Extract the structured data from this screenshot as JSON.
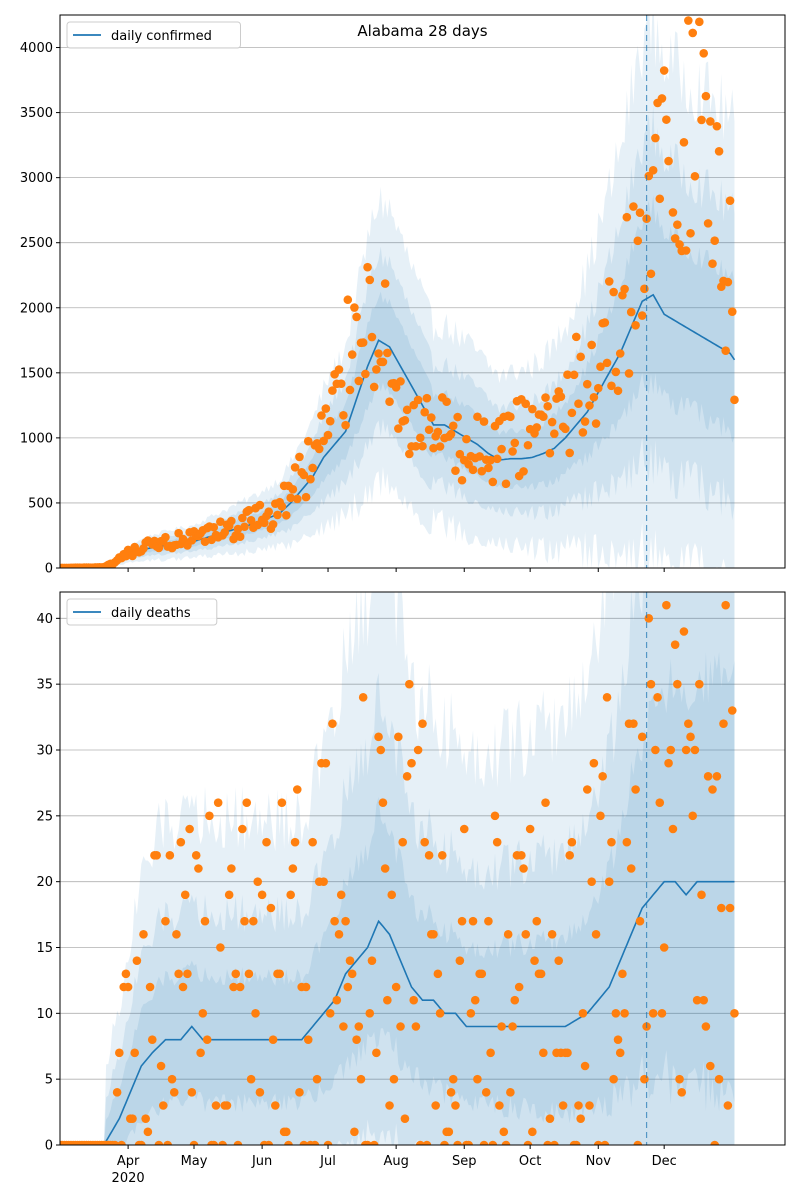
{
  "colors": {
    "line": "#1f77b4",
    "dots": "#ff7f0e",
    "band": "#1f77b4",
    "grid": "#b0b0b0",
    "forecast_line": "#1f77b4"
  },
  "x_axis": {
    "start_day": 0,
    "end_day": 330,
    "year_label": "2020",
    "ticks": [
      {
        "label": "Apr",
        "day": 31
      },
      {
        "label": "May",
        "day": 61
      },
      {
        "label": "Jun",
        "day": 92
      },
      {
        "label": "Jul",
        "day": 122
      },
      {
        "label": "Aug",
        "day": 153
      },
      {
        "label": "Sep",
        "day": 184
      },
      {
        "label": "Oct",
        "day": 214
      },
      {
        "label": "Nov",
        "day": 245
      },
      {
        "label": "Dec",
        "day": 275
      }
    ],
    "forecast_start_day": 267
  },
  "chart_data": [
    {
      "type": "line",
      "title": "Alabama 28 days",
      "legend": {
        "label": "daily confirmed",
        "placement": "top-left"
      },
      "ylim": [
        0,
        4250
      ],
      "yticks": [
        0,
        500,
        1000,
        1500,
        2000,
        2500,
        3000,
        3500,
        4000
      ],
      "grid": "horizontal",
      "line_knots": [
        [
          0,
          0
        ],
        [
          20,
          10
        ],
        [
          25,
          30
        ],
        [
          30,
          100
        ],
        [
          40,
          150
        ],
        [
          50,
          180
        ],
        [
          60,
          200
        ],
        [
          70,
          250
        ],
        [
          80,
          300
        ],
        [
          90,
          350
        ],
        [
          100,
          420
        ],
        [
          105,
          500
        ],
        [
          110,
          600
        ],
        [
          115,
          700
        ],
        [
          120,
          850
        ],
        [
          125,
          950
        ],
        [
          130,
          1050
        ],
        [
          135,
          1300
        ],
        [
          140,
          1550
        ],
        [
          145,
          1750
        ],
        [
          150,
          1700
        ],
        [
          155,
          1550
        ],
        [
          160,
          1400
        ],
        [
          165,
          1250
        ],
        [
          170,
          1100
        ],
        [
          175,
          1100
        ],
        [
          180,
          1050
        ],
        [
          185,
          1000
        ],
        [
          190,
          950
        ],
        [
          195,
          880
        ],
        [
          200,
          830
        ],
        [
          205,
          840
        ],
        [
          210,
          840
        ],
        [
          215,
          850
        ],
        [
          220,
          880
        ],
        [
          225,
          920
        ],
        [
          230,
          1000
        ],
        [
          235,
          1100
        ],
        [
          240,
          1200
        ],
        [
          245,
          1350
        ],
        [
          250,
          1500
        ],
        [
          255,
          1650
        ],
        [
          260,
          1850
        ],
        [
          265,
          2050
        ],
        [
          270,
          2100
        ],
        [
          275,
          1950
        ],
        [
          280,
          1900
        ],
        [
          285,
          1850
        ],
        [
          290,
          1800
        ],
        [
          295,
          1750
        ],
        [
          300,
          1700
        ],
        [
          305,
          1650
        ],
        [
          307,
          1600
        ]
      ],
      "dot_knots": [
        [
          0,
          0
        ],
        [
          20,
          5
        ],
        [
          25,
          40
        ],
        [
          30,
          100
        ],
        [
          40,
          160
        ],
        [
          50,
          200
        ],
        [
          60,
          210
        ],
        [
          70,
          260
        ],
        [
          80,
          310
        ],
        [
          90,
          380
        ],
        [
          100,
          440
        ],
        [
          105,
          600
        ],
        [
          110,
          700
        ],
        [
          115,
          850
        ],
        [
          120,
          1000
        ],
        [
          125,
          1200
        ],
        [
          130,
          1550
        ],
        [
          135,
          1900
        ],
        [
          140,
          2000
        ],
        [
          145,
          1800
        ],
        [
          150,
          1600
        ],
        [
          155,
          1250
        ],
        [
          160,
          1050
        ],
        [
          165,
          1000
        ],
        [
          170,
          1050
        ],
        [
          175,
          1000
        ],
        [
          180,
          900
        ],
        [
          185,
          870
        ],
        [
          190,
          900
        ],
        [
          195,
          850
        ],
        [
          200,
          900
        ],
        [
          205,
          950
        ],
        [
          210,
          1000
        ],
        [
          215,
          1050
        ],
        [
          220,
          1100
        ],
        [
          225,
          1150
        ],
        [
          230,
          1250
        ],
        [
          235,
          1350
        ],
        [
          240,
          1500
        ],
        [
          245,
          1600
        ],
        [
          250,
          1750
        ],
        [
          255,
          1900
        ],
        [
          260,
          2200
        ],
        [
          265,
          2500
        ],
        [
          270,
          2700
        ],
        [
          275,
          3200
        ],
        [
          280,
          3400
        ],
        [
          285,
          3500
        ],
        [
          290,
          3600
        ],
        [
          295,
          3200
        ],
        [
          300,
          2500
        ],
        [
          305,
          2300
        ],
        [
          307,
          1100
        ]
      ],
      "dot_scatter": 0.32,
      "band_spread": [
        0.2,
        0.38,
        0.62
      ]
    },
    {
      "type": "line",
      "title": "",
      "legend": {
        "label": "daily deaths",
        "placement": "top-left"
      },
      "ylim": [
        0,
        42
      ],
      "yticks": [
        0,
        5,
        10,
        15,
        20,
        25,
        30,
        35,
        40
      ],
      "grid": "horizontal",
      "line_knots": [
        [
          0,
          0
        ],
        [
          20,
          0
        ],
        [
          27,
          2
        ],
        [
          32,
          4
        ],
        [
          37,
          6
        ],
        [
          42,
          7
        ],
        [
          48,
          8
        ],
        [
          55,
          8
        ],
        [
          60,
          9
        ],
        [
          65,
          8
        ],
        [
          70,
          8
        ],
        [
          80,
          8
        ],
        [
          90,
          8
        ],
        [
          100,
          8
        ],
        [
          110,
          8
        ],
        [
          115,
          9
        ],
        [
          120,
          10
        ],
        [
          125,
          11
        ],
        [
          130,
          13
        ],
        [
          135,
          14
        ],
        [
          140,
          15
        ],
        [
          145,
          17
        ],
        [
          150,
          16
        ],
        [
          155,
          14
        ],
        [
          160,
          12
        ],
        [
          165,
          11
        ],
        [
          170,
          11
        ],
        [
          175,
          10
        ],
        [
          180,
          10
        ],
        [
          185,
          9
        ],
        [
          190,
          9
        ],
        [
          200,
          9
        ],
        [
          210,
          9
        ],
        [
          220,
          9
        ],
        [
          230,
          9
        ],
        [
          240,
          10
        ],
        [
          245,
          11
        ],
        [
          250,
          12
        ],
        [
          255,
          14
        ],
        [
          260,
          16
        ],
        [
          265,
          18
        ],
        [
          270,
          19
        ],
        [
          275,
          20
        ],
        [
          280,
          20
        ],
        [
          285,
          19
        ],
        [
          290,
          20
        ],
        [
          295,
          20
        ],
        [
          300,
          20
        ],
        [
          305,
          20
        ],
        [
          307,
          20
        ]
      ],
      "dot_knots": [
        [
          0,
          0
        ],
        [
          25,
          0
        ],
        [
          28,
          5
        ],
        [
          35,
          8
        ],
        [
          45,
          10
        ],
        [
          55,
          10
        ],
        [
          65,
          11
        ],
        [
          75,
          11
        ],
        [
          90,
          11
        ],
        [
          100,
          11
        ],
        [
          110,
          12
        ],
        [
          120,
          14
        ],
        [
          130,
          15
        ],
        [
          140,
          16
        ],
        [
          150,
          18
        ],
        [
          160,
          17
        ],
        [
          170,
          14
        ],
        [
          180,
          12
        ],
        [
          190,
          11
        ],
        [
          200,
          11
        ],
        [
          210,
          10
        ],
        [
          220,
          11
        ],
        [
          230,
          12
        ],
        [
          240,
          14
        ],
        [
          250,
          16
        ],
        [
          260,
          18
        ],
        [
          270,
          20
        ],
        [
          280,
          20
        ],
        [
          290,
          20
        ],
        [
          300,
          20
        ],
        [
          307,
          20
        ]
      ],
      "dot_scatter": 0.8,
      "band_spread": [
        0.4,
        0.8,
        1.4
      ]
    }
  ]
}
